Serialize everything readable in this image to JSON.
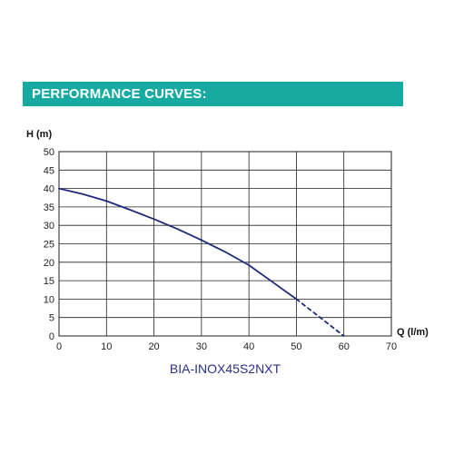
{
  "header": {
    "title": "PERFORMANCE CURVES:",
    "color": "#17aaa1"
  },
  "chart_data": {
    "type": "line",
    "title": "",
    "xlabel": "Q (l/m)",
    "ylabel": "H (m)",
    "xlim": [
      0,
      70
    ],
    "ylim": [
      0,
      50
    ],
    "x_ticks": [
      "0",
      "10",
      "20",
      "30",
      "40",
      "50",
      "60",
      "70"
    ],
    "y_ticks": [
      "0",
      "5",
      "10",
      "15",
      "20",
      "25",
      "30",
      "35",
      "40",
      "45",
      "50"
    ],
    "grid": true,
    "caption": "BIA-INOX45S2NXT",
    "series": [
      {
        "color": "#1f2a78",
        "line_style": "solid",
        "x": [
          0,
          5,
          10,
          15,
          20,
          25,
          30,
          35,
          40,
          45,
          50
        ],
        "y": [
          40,
          38.5,
          36.6,
          34.2,
          31.7,
          29,
          26,
          22.8,
          19.2,
          14.6,
          10
        ]
      },
      {
        "color": "#1f2a78",
        "line_style": "dashed",
        "x": [
          50,
          55,
          60
        ],
        "y": [
          10,
          5,
          0
        ]
      }
    ]
  }
}
